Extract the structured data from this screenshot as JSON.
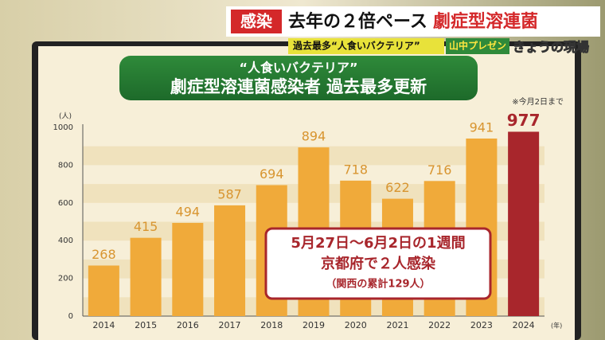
{
  "header": {
    "tag": "感染",
    "headline": "去年の２倍ペース",
    "headline_emphasis": "劇症型溶連菌",
    "subline": "過去最多“人食いバクテリア”",
    "presenter": "山中プレゼン",
    "program": "きょうの現場"
  },
  "chart_data": {
    "type": "bar",
    "title": "“人食いバクテリア”",
    "subtitle": "劇症型溶連菌感染者 過去最多更新",
    "note": "※今月2日まで",
    "y_unit": "(人)",
    "x_unit": "(年)",
    "categories": [
      "2014",
      "2015",
      "2016",
      "2017",
      "2018",
      "2019",
      "2020",
      "2021",
      "2022",
      "2023",
      "2024"
    ],
    "values": [
      268,
      415,
      494,
      587,
      694,
      894,
      718,
      622,
      716,
      941,
      977
    ],
    "colors": [
      "#f0aa3a",
      "#f0aa3a",
      "#f0aa3a",
      "#f0aa3a",
      "#f0aa3a",
      "#f0aa3a",
      "#f0aa3a",
      "#f0aa3a",
      "#f0aa3a",
      "#f0aa3a",
      "#a8262c"
    ],
    "ylim": [
      0,
      1000
    ],
    "yticks": [
      0,
      200,
      400,
      600,
      800,
      1000
    ],
    "grid": true,
    "annotations": [
      "5月27日～6月2日の1週間",
      "京都府で２人感染",
      "（関西の累計129人）"
    ]
  }
}
